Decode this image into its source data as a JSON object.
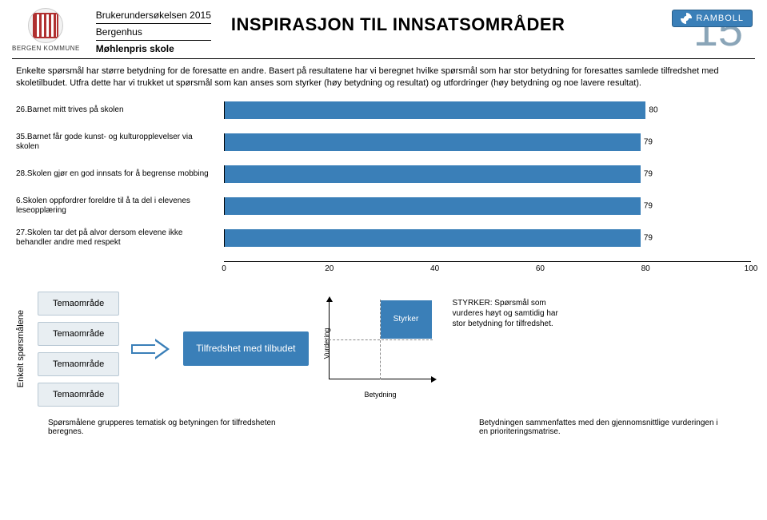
{
  "header": {
    "logo_caption": "BERGEN KOMMUNE",
    "survey_line": "Brukerundersøkelsen 2015",
    "district": "Bergenhus",
    "school": "Møhlenpris skole",
    "title": "INSPIRASJON TIL INNSATSOMRÅDER",
    "page_number": "15",
    "brand": "RAMBOLL"
  },
  "intro": "Enkelte spørsmål har større betydning for de foresatte en andre. Basert på resultatene har vi beregnet hvilke spørsmål som har stor betydning for foresattes samlede tilfredshet med skoletilbudet. Utfra dette har vi trukket ut spørsmål som kan anses som styrker (høy betydning og resultat) og utfordringer (høy betydning og noe lavere resultat).",
  "chart": {
    "type": "bar",
    "xlim": [
      0,
      100
    ],
    "ticks": [
      0,
      20,
      40,
      60,
      80,
      100
    ],
    "bar_color": "#3a7fb8",
    "bars": [
      {
        "label": "26.Barnet mitt trives på skolen",
        "value": 80
      },
      {
        "label": "35.Barnet får gode kunst- og kulturopplevelser via skolen",
        "value": 79
      },
      {
        "label": "28.Skolen gjør en god innsats for å begrense mobbing",
        "value": 79
      },
      {
        "label": "6.Skolen oppfordrer foreldre til å ta del i elevenes leseopplæring",
        "value": 79
      },
      {
        "label": "27.Skolen tar det på alvor dersom elevene ikke behandler andre med respekt",
        "value": 79
      }
    ]
  },
  "bottom": {
    "vertical_label": "Enkelt spørsmålene",
    "tema_label": "Temaområde",
    "tilfredshet": "Tilfredshet med tilbudet",
    "matrix": {
      "v_label": "Vurdering",
      "h_label": "Betydning",
      "quadrant": "Styrker"
    },
    "styrker_desc": "STYRKER: Spørsmål som vurderes høyt og samtidig har stor betydning for tilfredshet."
  },
  "footer": {
    "left": "Spørsmålene grupperes tematisk og betyningen for tilfredsheten beregnes.",
    "right": "Betydningen sammenfattes med den gjennomsnittlige vurderingen i en prioriteringsmatrise."
  }
}
